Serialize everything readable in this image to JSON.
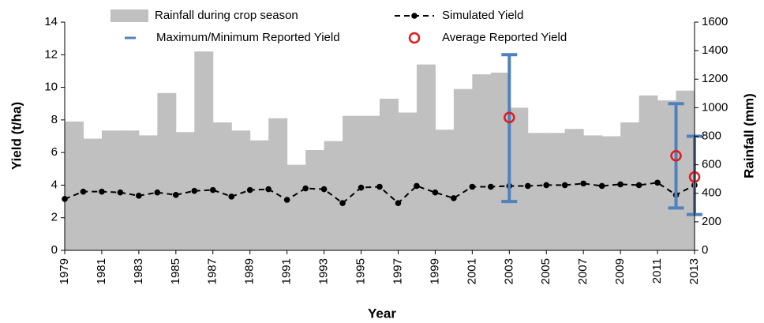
{
  "chart_data": {
    "type": "combo",
    "x_label": "Year",
    "y_label": "Yield (t/ha)",
    "y2_label": "Rainfall (mm)",
    "x": [
      1979,
      1980,
      1981,
      1982,
      1983,
      1984,
      1985,
      1986,
      1987,
      1988,
      1989,
      1990,
      1991,
      1992,
      1993,
      1994,
      1995,
      1996,
      1997,
      1998,
      1999,
      2000,
      2001,
      2002,
      2003,
      2004,
      2005,
      2006,
      2007,
      2008,
      2009,
      2010,
      2011,
      2012,
      2013
    ],
    "xlim": [
      1979,
      2013
    ],
    "xticks": [
      1979,
      1981,
      1983,
      1985,
      1987,
      1989,
      1991,
      1993,
      1995,
      1997,
      1999,
      2001,
      2003,
      2005,
      2007,
      2009,
      2011,
      2013
    ],
    "ylim": [
      0,
      14
    ],
    "yticks": [
      0,
      2,
      4,
      6,
      8,
      10,
      12,
      14
    ],
    "y2lim": [
      0,
      1600
    ],
    "y2ticks": [
      0,
      200,
      400,
      600,
      800,
      1000,
      1200,
      1400,
      1600
    ],
    "series": [
      {
        "name": "Rainfall during crop season",
        "type": "bar",
        "axis": "y2",
        "color": "#c0c0c0",
        "values": [
          903,
          783,
          840,
          840,
          806,
          1103,
          829,
          1394,
          897,
          840,
          771,
          926,
          600,
          703,
          766,
          943,
          943,
          1063,
          966,
          1303,
          846,
          1131,
          1234,
          1246,
          1000,
          823,
          823,
          851,
          806,
          800,
          897,
          1086,
          1051,
          1120,
          1194
        ]
      },
      {
        "name": "Simulated Yield",
        "type": "line",
        "color": "#000000",
        "values": [
          3.15,
          3.6,
          3.6,
          3.55,
          3.35,
          3.55,
          3.4,
          3.65,
          3.7,
          3.3,
          3.7,
          3.75,
          3.1,
          3.8,
          3.75,
          2.9,
          3.85,
          3.9,
          2.9,
          3.95,
          3.55,
          3.2,
          3.9,
          3.9,
          3.95,
          3.95,
          4.0,
          4.0,
          4.1,
          3.95,
          4.05,
          4.0,
          4.15,
          3.4,
          4.0
        ]
      },
      {
        "name": "Maximum/Minimum Reported Yield",
        "type": "range",
        "color": "#4f81bd",
        "x": [
          2003,
          2012,
          2013
        ],
        "high": [
          12,
          9,
          7
        ],
        "low": [
          3,
          2.6,
          2.2
        ]
      },
      {
        "name": "Average Reported Yield",
        "type": "marker",
        "color": "#e31a1c",
        "x": [
          2003,
          2012,
          2013
        ],
        "values": [
          8.15,
          5.8,
          4.5
        ]
      }
    ]
  }
}
